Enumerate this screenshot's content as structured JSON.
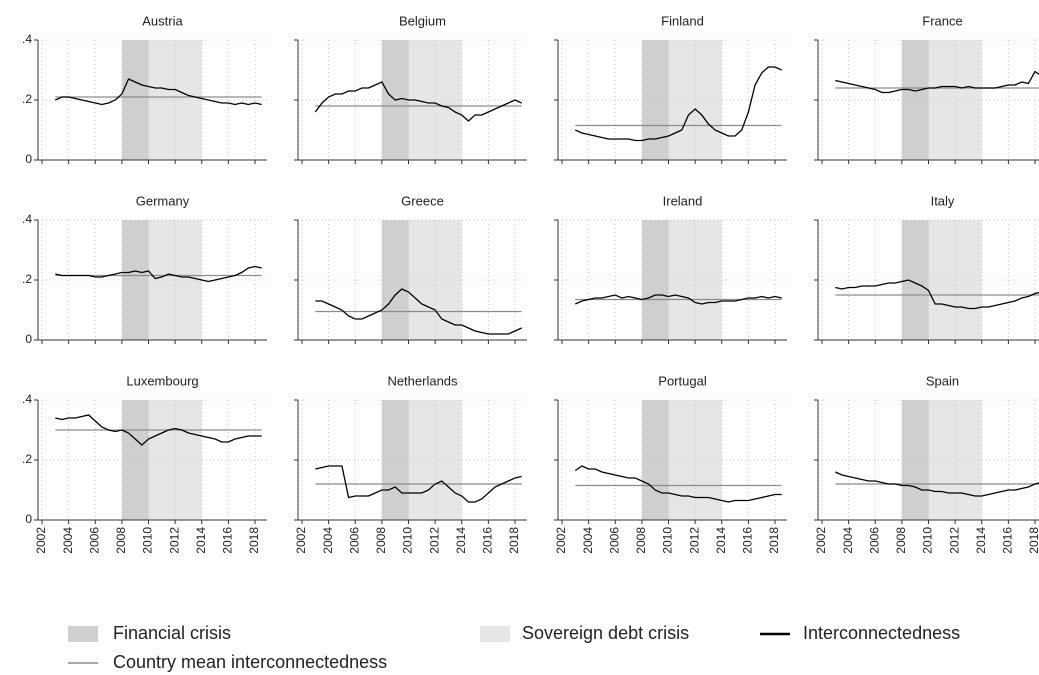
{
  "chart_data": {
    "type": "line",
    "x": [
      2003,
      2003.5,
      2004,
      2004.5,
      2005,
      2005.5,
      2006,
      2006.5,
      2007,
      2007.5,
      2008,
      2008.5,
      2009,
      2009.5,
      2010,
      2010.5,
      2011,
      2011.5,
      2012,
      2012.5,
      2013,
      2013.5,
      2014,
      2014.5,
      2015,
      2015.5,
      2016,
      2016.5,
      2017,
      2017.5,
      2018,
      2018.5
    ],
    "xlim": [
      2001.7,
      2018.9
    ],
    "xticks": [
      2002,
      2004,
      2006,
      2008,
      2010,
      2012,
      2014,
      2016,
      2018
    ],
    "ylim": [
      0,
      0.4
    ],
    "yticks": [
      0,
      {
        "value": 0.2,
        "label": ".2"
      },
      {
        "value": 0.4,
        "label": ".4"
      }
    ],
    "grid": true,
    "bands": [
      {
        "name": "Financial crisis",
        "color": "#cfcfcf",
        "x": [
          2008,
          2010
        ]
      },
      {
        "name": "Sovereign debt crisis",
        "color": "#e6e6e6",
        "x": [
          2010,
          2014
        ]
      }
    ],
    "line": {
      "name": "Interconnectedness",
      "color": "#000000"
    },
    "mean_line": {
      "name": "Country mean interconnectedness",
      "color": "#8c8c8c"
    },
    "panels": [
      {
        "title": "Austria",
        "mean": 0.21,
        "values": [
          0.2,
          0.21,
          0.21,
          0.205,
          0.2,
          0.195,
          0.19,
          0.185,
          0.19,
          0.2,
          0.22,
          0.27,
          0.26,
          0.25,
          0.245,
          0.24,
          0.24,
          0.235,
          0.235,
          0.225,
          0.215,
          0.21,
          0.205,
          0.2,
          0.195,
          0.19,
          0.19,
          0.185,
          0.19,
          0.185,
          0.19,
          0.185
        ]
      },
      {
        "title": "Belgium",
        "mean": 0.18,
        "values": [
          0.16,
          0.19,
          0.21,
          0.22,
          0.22,
          0.23,
          0.23,
          0.24,
          0.24,
          0.25,
          0.26,
          0.22,
          0.2,
          0.205,
          0.2,
          0.2,
          0.195,
          0.19,
          0.19,
          0.18,
          0.175,
          0.16,
          0.15,
          0.13,
          0.15,
          0.15,
          0.16,
          0.17,
          0.18,
          0.19,
          0.2,
          0.19
        ]
      },
      {
        "title": "Finland",
        "mean": 0.115,
        "values": [
          0.1,
          0.09,
          0.085,
          0.08,
          0.075,
          0.07,
          0.07,
          0.07,
          0.07,
          0.065,
          0.065,
          0.07,
          0.07,
          0.075,
          0.08,
          0.09,
          0.1,
          0.15,
          0.17,
          0.15,
          0.12,
          0.1,
          0.09,
          0.08,
          0.08,
          0.1,
          0.16,
          0.25,
          0.29,
          0.31,
          0.31,
          0.3
        ]
      },
      {
        "title": "France",
        "mean": 0.24,
        "values": [
          0.265,
          0.26,
          0.255,
          0.25,
          0.245,
          0.24,
          0.235,
          0.225,
          0.225,
          0.23,
          0.235,
          0.235,
          0.23,
          0.235,
          0.24,
          0.24,
          0.245,
          0.245,
          0.245,
          0.24,
          0.245,
          0.24,
          0.24,
          0.24,
          0.24,
          0.245,
          0.25,
          0.25,
          0.26,
          0.255,
          0.295,
          0.28
        ]
      },
      {
        "title": "Germany",
        "mean": 0.215,
        "values": [
          0.22,
          0.215,
          0.215,
          0.215,
          0.215,
          0.215,
          0.21,
          0.21,
          0.215,
          0.22,
          0.225,
          0.225,
          0.23,
          0.225,
          0.23,
          0.205,
          0.21,
          0.22,
          0.215,
          0.21,
          0.21,
          0.205,
          0.2,
          0.195,
          0.2,
          0.205,
          0.21,
          0.215,
          0.225,
          0.24,
          0.245,
          0.24
        ]
      },
      {
        "title": "Greece",
        "mean": 0.095,
        "values": [
          0.13,
          0.13,
          0.12,
          0.11,
          0.1,
          0.08,
          0.07,
          0.07,
          0.08,
          0.09,
          0.1,
          0.12,
          0.15,
          0.17,
          0.16,
          0.14,
          0.12,
          0.11,
          0.1,
          0.07,
          0.06,
          0.05,
          0.05,
          0.04,
          0.03,
          0.025,
          0.02,
          0.02,
          0.02,
          0.02,
          0.03,
          0.04
        ]
      },
      {
        "title": "Ireland",
        "mean": 0.135,
        "values": [
          0.12,
          0.13,
          0.135,
          0.14,
          0.14,
          0.145,
          0.15,
          0.14,
          0.145,
          0.14,
          0.135,
          0.14,
          0.15,
          0.15,
          0.145,
          0.15,
          0.145,
          0.14,
          0.125,
          0.12,
          0.125,
          0.125,
          0.13,
          0.13,
          0.13,
          0.135,
          0.14,
          0.14,
          0.145,
          0.14,
          0.145,
          0.14
        ]
      },
      {
        "title": "Italy",
        "mean": 0.15,
        "values": [
          0.175,
          0.17,
          0.175,
          0.175,
          0.18,
          0.18,
          0.18,
          0.185,
          0.19,
          0.19,
          0.195,
          0.2,
          0.19,
          0.18,
          0.165,
          0.12,
          0.12,
          0.115,
          0.11,
          0.11,
          0.105,
          0.105,
          0.11,
          0.11,
          0.115,
          0.12,
          0.125,
          0.13,
          0.14,
          0.145,
          0.155,
          0.16
        ]
      },
      {
        "title": "Luxembourg",
        "mean": 0.3,
        "values": [
          0.34,
          0.335,
          0.34,
          0.34,
          0.345,
          0.35,
          0.33,
          0.31,
          0.3,
          0.295,
          0.3,
          0.29,
          0.27,
          0.25,
          0.27,
          0.28,
          0.29,
          0.3,
          0.305,
          0.3,
          0.29,
          0.285,
          0.28,
          0.275,
          0.27,
          0.26,
          0.26,
          0.27,
          0.275,
          0.28,
          0.28,
          0.28
        ]
      },
      {
        "title": "Netherlands",
        "mean": 0.12,
        "values": [
          0.17,
          0.175,
          0.18,
          0.18,
          0.18,
          0.075,
          0.08,
          0.08,
          0.08,
          0.09,
          0.1,
          0.1,
          0.11,
          0.09,
          0.09,
          0.09,
          0.09,
          0.1,
          0.12,
          0.13,
          0.11,
          0.09,
          0.08,
          0.06,
          0.06,
          0.07,
          0.09,
          0.11,
          0.12,
          0.13,
          0.14,
          0.145
        ]
      },
      {
        "title": "Portugal",
        "mean": 0.115,
        "values": [
          0.165,
          0.18,
          0.17,
          0.17,
          0.16,
          0.155,
          0.15,
          0.145,
          0.14,
          0.14,
          0.13,
          0.12,
          0.1,
          0.09,
          0.09,
          0.085,
          0.08,
          0.08,
          0.075,
          0.075,
          0.075,
          0.07,
          0.065,
          0.06,
          0.065,
          0.065,
          0.065,
          0.07,
          0.075,
          0.08,
          0.085,
          0.085
        ]
      },
      {
        "title": "Spain",
        "mean": 0.12,
        "values": [
          0.16,
          0.15,
          0.145,
          0.14,
          0.135,
          0.13,
          0.13,
          0.125,
          0.12,
          0.12,
          0.115,
          0.115,
          0.11,
          0.1,
          0.1,
          0.095,
          0.095,
          0.09,
          0.09,
          0.09,
          0.085,
          0.08,
          0.08,
          0.085,
          0.09,
          0.095,
          0.1,
          0.1,
          0.105,
          0.11,
          0.12,
          0.125
        ]
      }
    ]
  }
}
